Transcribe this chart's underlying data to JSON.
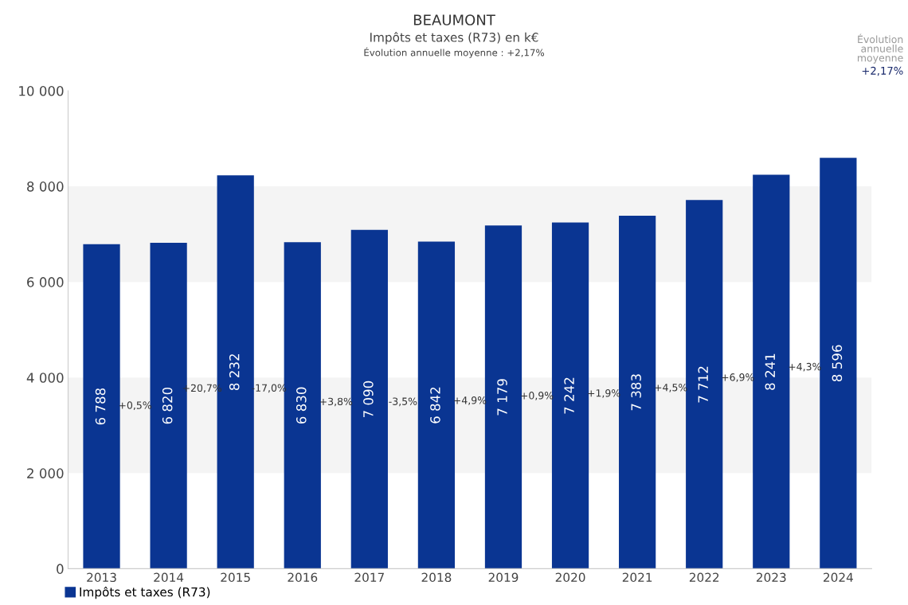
{
  "chart_data": {
    "type": "bar",
    "title": "BEAUMONT",
    "subtitle": "Impôts et taxes (R73) en k€\nÉvolution annuelle moyenne : +2,17%",
    "categories": [
      "2013",
      "2014",
      "2015",
      "2016",
      "2017",
      "2018",
      "2019",
      "2020",
      "2021",
      "2022",
      "2023",
      "2024"
    ],
    "series": [
      {
        "name": "Impôts et taxes (R73)",
        "color": "#0a3592",
        "values": [
          6788,
          6820,
          8232,
          6830,
          7090,
          6842,
          7179,
          7242,
          7383,
          7712,
          8241,
          8596
        ],
        "value_labels": [
          "6 788",
          "6 820",
          "8 232",
          "6 830",
          "7 090",
          "6 842",
          "7 179",
          "7 242",
          "7 383",
          "7 712",
          "8 241",
          "8 596"
        ]
      }
    ],
    "ylim": [
      0,
      10000
    ],
    "yticks": [
      0,
      {
        "value": 2000,
        "label": "2 000"
      },
      {
        "value": 4000,
        "label": "4 000"
      },
      {
        "value": 6000,
        "label": "6 000"
      },
      {
        "value": 8000,
        "label": "8 000"
      },
      {
        "value": 10000,
        "label": "10 000"
      }
    ],
    "bands": [
      {
        "axis": "y",
        "from": 2000,
        "to": 4000,
        "color": "#f4f4f4"
      },
      {
        "axis": "y",
        "from": 6000,
        "to": 8000,
        "color": "#f4f4f4"
      }
    ],
    "annotations": [
      "+0,5%",
      "+20,7%",
      "-17,0%",
      "+3,8%",
      "-3,5%",
      "+4,9%",
      "+0,9%",
      "+1,9%",
      "+4,5%",
      "+6,9%",
      "+4,3%",
      "Évolution\nannuelle\nmoyenne",
      "+2,17%"
    ],
    "grid": false,
    "legend": "bottom left"
  }
}
